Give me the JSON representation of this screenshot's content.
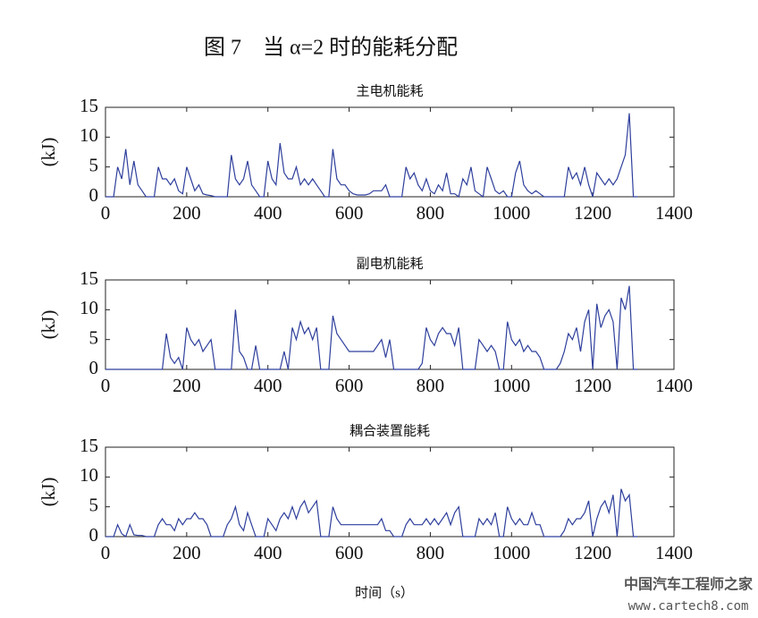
{
  "title": "图 7　当 α=2 时的能耗分配",
  "x_label": "时间（s）",
  "watermark": {
    "name": "中国汽车工程师之家",
    "url": "www.cartech8.com"
  },
  "chart_data": [
    {
      "type": "line",
      "title": "主电机能耗",
      "ylabel": "(kJ)",
      "color": "#2e3f9c",
      "xlim": [
        0,
        1400
      ],
      "xticks": [
        0,
        200,
        400,
        600,
        800,
        1000,
        1200,
        1400
      ],
      "ylim": [
        0,
        15
      ],
      "yticks": [
        0,
        5,
        10,
        15
      ],
      "x": [
        0,
        10,
        20,
        30,
        40,
        50,
        60,
        70,
        80,
        90,
        100,
        110,
        120,
        130,
        140,
        150,
        160,
        170,
        180,
        190,
        200,
        210,
        220,
        230,
        240,
        250,
        260,
        270,
        280,
        290,
        300,
        310,
        320,
        330,
        340,
        350,
        360,
        370,
        380,
        390,
        400,
        410,
        420,
        430,
        440,
        450,
        460,
        470,
        480,
        490,
        500,
        510,
        520,
        530,
        540,
        550,
        560,
        570,
        580,
        590,
        600,
        610,
        620,
        630,
        640,
        650,
        660,
        670,
        680,
        690,
        700,
        710,
        720,
        730,
        740,
        750,
        760,
        770,
        780,
        790,
        800,
        810,
        820,
        830,
        840,
        850,
        860,
        870,
        880,
        890,
        900,
        910,
        920,
        930,
        940,
        950,
        960,
        970,
        980,
        990,
        1000,
        1010,
        1020,
        1030,
        1040,
        1050,
        1060,
        1070,
        1080,
        1090,
        1100,
        1110,
        1120,
        1130,
        1140,
        1150,
        1160,
        1170,
        1180,
        1190,
        1200,
        1210,
        1220,
        1230,
        1240,
        1250,
        1260,
        1270,
        1280,
        1290,
        1300,
        1310
      ],
      "values": [
        0,
        0,
        0,
        5,
        3,
        8,
        2,
        6,
        2,
        1,
        0,
        0,
        0,
        5,
        3,
        3,
        2,
        3,
        1,
        0.5,
        5,
        3,
        1,
        2,
        0.5,
        0.3,
        0.2,
        0,
        0,
        0,
        0,
        7,
        3,
        2,
        3,
        6,
        2,
        1,
        0,
        0,
        6,
        3,
        2,
        9,
        4,
        3,
        3,
        5,
        2,
        3,
        2,
        3,
        2,
        1,
        0,
        0,
        8,
        3,
        2,
        2,
        1,
        0.5,
        0.3,
        0.3,
        0.3,
        0.5,
        1,
        1,
        1,
        2,
        0,
        0,
        0,
        0,
        5,
        3,
        4,
        2,
        1,
        3,
        1,
        0.5,
        2,
        1,
        4,
        0.5,
        0.5,
        0,
        3,
        2,
        5,
        1,
        0.5,
        0,
        5,
        3,
        1,
        0.5,
        1,
        0,
        0,
        4,
        6,
        2,
        1,
        0.5,
        1,
        0.5,
        0,
        0,
        0,
        0,
        0,
        0,
        5,
        3,
        4,
        2,
        5,
        2,
        0,
        4,
        3,
        2,
        3,
        2,
        3,
        5,
        7,
        14,
        0,
        0
      ]
    },
    {
      "type": "line",
      "title": "副电机能耗",
      "ylabel": "(kJ)",
      "color": "#2e3f9c",
      "xlim": [
        0,
        1400
      ],
      "xticks": [
        0,
        200,
        400,
        600,
        800,
        1000,
        1200,
        1400
      ],
      "ylim": [
        0,
        15
      ],
      "yticks": [
        0,
        5,
        10,
        15
      ],
      "x": [
        0,
        10,
        20,
        30,
        40,
        50,
        60,
        70,
        80,
        90,
        100,
        110,
        120,
        130,
        140,
        150,
        160,
        170,
        180,
        190,
        200,
        210,
        220,
        230,
        240,
        250,
        260,
        270,
        280,
        290,
        300,
        310,
        320,
        330,
        340,
        350,
        360,
        370,
        380,
        390,
        400,
        410,
        420,
        430,
        440,
        450,
        460,
        470,
        480,
        490,
        500,
        510,
        520,
        530,
        540,
        550,
        560,
        570,
        580,
        590,
        600,
        610,
        620,
        630,
        640,
        650,
        660,
        670,
        680,
        690,
        700,
        710,
        720,
        730,
        740,
        750,
        760,
        770,
        780,
        790,
        800,
        810,
        820,
        830,
        840,
        850,
        860,
        870,
        880,
        890,
        900,
        910,
        920,
        930,
        940,
        950,
        960,
        970,
        980,
        990,
        1000,
        1010,
        1020,
        1030,
        1040,
        1050,
        1060,
        1070,
        1080,
        1090,
        1100,
        1110,
        1120,
        1130,
        1140,
        1150,
        1160,
        1170,
        1180,
        1190,
        1200,
        1210,
        1220,
        1230,
        1240,
        1250,
        1260,
        1270,
        1280,
        1290,
        1300,
        1310
      ],
      "values": [
        0,
        0,
        0,
        0,
        0,
        0,
        0,
        0,
        0,
        0,
        0,
        0,
        0,
        0,
        0,
        6,
        2,
        1,
        2,
        0,
        7,
        5,
        4,
        5,
        3,
        4,
        5,
        0,
        0,
        0,
        0,
        0,
        10,
        3,
        2,
        0,
        0,
        4,
        0,
        0,
        0,
        0,
        0,
        0,
        3,
        0,
        7,
        5,
        8,
        6,
        7,
        5,
        7,
        0,
        0,
        0,
        9,
        6,
        5,
        4,
        3,
        3,
        3,
        3,
        3,
        3,
        3,
        4,
        5,
        2,
        5,
        0,
        0,
        0,
        0,
        0,
        0,
        0,
        1,
        7,
        5,
        4,
        6,
        7,
        6,
        6,
        4,
        7,
        0,
        0,
        0,
        0,
        5,
        4,
        3,
        4,
        3,
        0,
        0,
        8,
        5,
        4,
        5,
        3,
        4,
        3,
        3,
        2,
        0,
        0,
        0,
        0,
        1,
        3,
        6,
        5,
        7,
        3,
        8,
        10,
        0,
        11,
        7,
        9,
        10,
        8,
        0,
        12,
        10,
        14,
        0,
        0
      ]
    },
    {
      "type": "line",
      "title": "耦合装置能耗",
      "ylabel": "(kJ)",
      "color": "#2e3f9c",
      "xlim": [
        0,
        1400
      ],
      "xticks": [
        0,
        200,
        400,
        600,
        800,
        1000,
        1200,
        1400
      ],
      "ylim": [
        0,
        15
      ],
      "yticks": [
        0,
        5,
        10,
        15
      ],
      "x": [
        0,
        10,
        20,
        30,
        40,
        50,
        60,
        70,
        80,
        90,
        100,
        110,
        120,
        130,
        140,
        150,
        160,
        170,
        180,
        190,
        200,
        210,
        220,
        230,
        240,
        250,
        260,
        270,
        280,
        290,
        300,
        310,
        320,
        330,
        340,
        350,
        360,
        370,
        380,
        390,
        400,
        410,
        420,
        430,
        440,
        450,
        460,
        470,
        480,
        490,
        500,
        510,
        520,
        530,
        540,
        550,
        560,
        570,
        580,
        590,
        600,
        610,
        620,
        630,
        640,
        650,
        660,
        670,
        680,
        690,
        700,
        710,
        720,
        730,
        740,
        750,
        760,
        770,
        780,
        790,
        800,
        810,
        820,
        830,
        840,
        850,
        860,
        870,
        880,
        890,
        900,
        910,
        920,
        930,
        940,
        950,
        960,
        970,
        980,
        990,
        1000,
        1010,
        1020,
        1030,
        1040,
        1050,
        1060,
        1070,
        1080,
        1090,
        1100,
        1110,
        1120,
        1130,
        1140,
        1150,
        1160,
        1170,
        1180,
        1190,
        1200,
        1210,
        1220,
        1230,
        1240,
        1250,
        1260,
        1270,
        1280,
        1290,
        1300,
        1310
      ],
      "values": [
        0,
        0,
        0,
        2,
        0.5,
        0,
        2,
        0.3,
        0.2,
        0.2,
        0,
        0,
        0,
        2,
        3,
        2,
        2,
        1,
        3,
        2,
        3,
        3,
        4,
        3,
        3,
        2,
        0,
        0,
        0,
        0,
        2,
        3,
        5,
        2,
        1,
        4,
        2,
        0,
        0,
        0,
        3,
        2,
        1,
        3,
        4,
        3,
        5,
        3,
        5,
        6,
        4,
        5,
        6,
        0,
        0,
        0,
        5,
        3,
        2,
        2,
        2,
        2,
        2,
        2,
        2,
        2,
        2,
        2,
        3,
        1,
        1,
        0,
        0,
        0,
        2,
        3,
        2,
        2,
        2,
        3,
        2,
        3,
        2,
        3,
        4,
        2,
        4,
        5,
        0,
        0,
        0,
        0,
        3,
        2,
        3,
        2,
        4,
        0,
        0,
        5,
        3,
        2,
        3,
        2,
        2,
        4,
        2,
        2,
        0,
        0,
        0,
        0,
        0,
        1,
        3,
        2,
        3,
        3,
        4,
        6,
        0,
        3,
        5,
        6,
        4,
        7,
        0,
        8,
        6,
        7,
        0,
        0
      ]
    }
  ]
}
